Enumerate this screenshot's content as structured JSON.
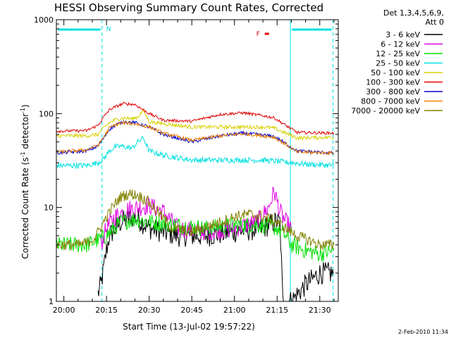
{
  "chart_data": {
    "type": "line",
    "title": "HESSI Observing Summary Count Rates, Corrected",
    "xlabel": "Start Time (13-Jul-02 19:57:22)",
    "ylabel_pre": "Corrected Count Rate (s",
    "ylabel_sup1": "-1",
    "ylabel_mid": " detector",
    "ylabel_sup2": "-1",
    "ylabel_post": ")",
    "y_scale": "log",
    "xlim": [
      "19:57:22",
      "21:36:30"
    ],
    "ylim": [
      1,
      1000
    ],
    "x_ticks": [
      "20:00",
      "20:15",
      "20:30",
      "20:45",
      "21:00",
      "21:15",
      "21:30"
    ],
    "y_ticks": [
      "1",
      "10",
      "100",
      "1000"
    ],
    "grid": false,
    "legend_header": [
      "Det 1,3,4,5,6,9,",
      "Att 0"
    ],
    "legend_position": "right",
    "series": [
      {
        "name": "3 - 6 keV",
        "color": "#000000",
        "x": [
          "19:57:22",
          "20:05",
          "20:10",
          "20:12",
          "20:13",
          "20:14",
          "20:15",
          "20:16",
          "20:20",
          "20:25",
          "20:30",
          "20:40",
          "20:50",
          "21:00",
          "21:10",
          "21:14",
          "21:16",
          "21:17",
          "21:20",
          "21:25",
          "21:30",
          "21:35"
        ],
        "y": [
          null,
          null,
          null,
          1.2,
          1.5,
          2.2,
          3.5,
          5,
          7,
          8,
          6,
          5,
          5,
          5.5,
          6,
          7,
          7,
          1,
          1,
          1.5,
          2,
          2
        ]
      },
      {
        "name": "6 - 12 keV",
        "color": "#e000e0",
        "x": [
          "20:13",
          "20:15",
          "20:18",
          "20:22",
          "20:26",
          "20:30",
          "20:35",
          "20:40",
          "20:50",
          "21:00",
          "21:08",
          "21:12",
          "21:14",
          "21:16",
          "21:18",
          "21:20"
        ],
        "y": [
          4,
          6,
          8,
          9.5,
          10,
          10.5,
          9,
          6,
          5.5,
          6,
          7,
          10,
          15,
          9,
          7,
          6
        ]
      },
      {
        "name": "12 - 25 keV",
        "color": "#00e000",
        "x": [
          "19:57:22",
          "20:08",
          "20:12",
          "20:15",
          "20:20",
          "20:25",
          "20:30",
          "20:40",
          "20:50",
          "21:00",
          "21:10",
          "21:15",
          "21:18",
          "21:20",
          "21:25",
          "21:30",
          "21:35"
        ],
        "y": [
          4,
          4,
          4.5,
          5,
          7,
          7.5,
          7,
          6.5,
          6,
          6.5,
          6.5,
          6,
          5,
          4,
          3.5,
          3.2,
          3.5
        ]
      },
      {
        "name": "25 - 50 keV",
        "color": "#00e0e0",
        "x": [
          "19:57:22",
          "20:08",
          "20:12",
          "20:14",
          "20:16",
          "20:18",
          "20:20",
          "20:24",
          "20:26",
          "20:28",
          "20:30",
          "20:35",
          "20:45",
          "21:00",
          "21:10",
          "21:15",
          "21:20",
          "21:25",
          "21:35"
        ],
        "y": [
          28,
          28,
          30,
          33,
          40,
          44,
          45,
          43,
          50,
          55,
          40,
          36,
          32,
          32,
          32,
          31,
          30,
          29,
          28
        ]
      },
      {
        "name": "50 - 100 keV",
        "color": "#d8d000",
        "x": [
          "19:57:22",
          "20:08",
          "20:12",
          "20:14",
          "20:16",
          "20:18",
          "20:21",
          "20:24",
          "20:26",
          "20:28",
          "20:30",
          "20:35",
          "20:45",
          "21:00",
          "21:10",
          "21:14",
          "21:18",
          "21:22",
          "21:35"
        ],
        "y": [
          58,
          58,
          60,
          70,
          80,
          86,
          90,
          88,
          92,
          108,
          82,
          78,
          72,
          72,
          72,
          70,
          62,
          55,
          56
        ]
      },
      {
        "name": "100 - 300 keV",
        "color": "#e00000",
        "x": [
          "19:57:22",
          "20:08",
          "20:12",
          "20:14",
          "20:16",
          "20:18",
          "20:21",
          "20:25",
          "20:30",
          "20:35",
          "20:45",
          "20:55",
          "21:03",
          "21:10",
          "21:14",
          "21:18",
          "21:22",
          "21:35"
        ],
        "y": [
          65,
          66,
          75,
          92,
          110,
          118,
          128,
          125,
          100,
          85,
          83,
          98,
          102,
          95,
          90,
          75,
          63,
          62
        ]
      },
      {
        "name": "300 - 800 keV",
        "color": "#0000d0",
        "x": [
          "19:57:22",
          "20:08",
          "20:12",
          "20:14",
          "20:16",
          "20:18",
          "20:21",
          "20:25",
          "20:30",
          "20:35",
          "20:45",
          "20:55",
          "21:03",
          "21:10",
          "21:14",
          "21:18",
          "21:22",
          "21:35"
        ],
        "y": [
          38,
          40,
          45,
          55,
          68,
          75,
          82,
          80,
          72,
          60,
          50,
          58,
          62,
          59,
          57,
          48,
          40,
          38
        ]
      },
      {
        "name": "800 - 7000 keV",
        "color": "#f08000",
        "x": [
          "19:57:22",
          "20:08",
          "20:12",
          "20:14",
          "20:16",
          "20:18",
          "20:21",
          "20:25",
          "20:30",
          "20:35",
          "20:45",
          "20:55",
          "21:03",
          "21:10",
          "21:14",
          "21:18",
          "21:22",
          "21:35"
        ],
        "y": [
          39,
          41,
          46,
          56,
          70,
          76,
          80,
          78,
          72,
          62,
          52,
          58,
          61,
          58,
          56,
          47,
          39,
          38
        ]
      },
      {
        "name": "7000 - 20000 keV",
        "color": "#808000",
        "x": [
          "19:57:22",
          "20:05",
          "20:08",
          "20:11",
          "20:14",
          "20:17",
          "20:20",
          "20:23",
          "20:26",
          "20:29",
          "20:33",
          "20:38",
          "20:45",
          "20:55",
          "21:00",
          "21:05",
          "21:10",
          "21:15",
          "21:18",
          "21:22",
          "21:26",
          "21:30",
          "21:35"
        ],
        "y": [
          4,
          4,
          4.2,
          4.8,
          7,
          10,
          13,
          14,
          13.5,
          12,
          9,
          6,
          5.5,
          7,
          8,
          8.5,
          8,
          7,
          6,
          5,
          4.5,
          4,
          4
        ]
      }
    ],
    "annotations": [
      {
        "label": "N",
        "color": "#00d0e0"
      },
      {
        "label": "F",
        "color": "#e00000"
      }
    ],
    "eclipse_bands": [
      {
        "start": "19:57:22",
        "end": "20:13:24",
        "color": "#00e0e0"
      },
      {
        "start": "21:19:40",
        "end": "21:34:40",
        "color": "#00e0e0"
      }
    ],
    "flare_mark": {
      "start": "21:10:40",
      "end": "21:12:10",
      "color": "#e00000"
    },
    "vlines_solid": [
      "19:57:22",
      "21:19:40"
    ],
    "vlines_dashed": [
      "20:13:24",
      "21:34:40"
    ],
    "footer_timestamp": "2-Feb-2010 11:34"
  }
}
